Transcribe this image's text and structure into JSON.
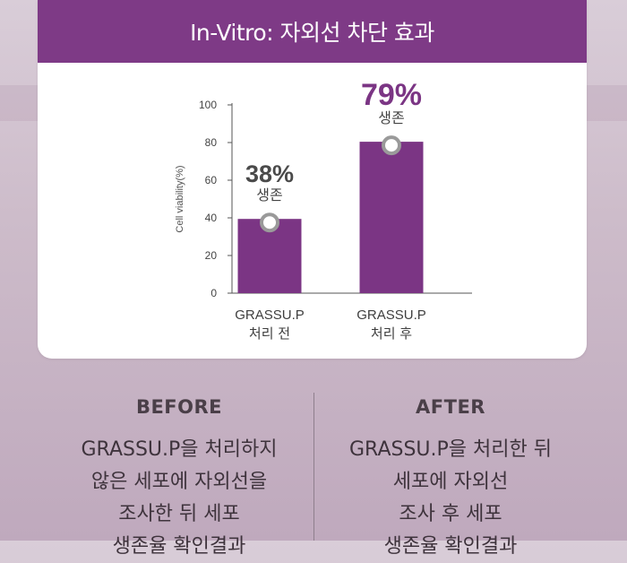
{
  "header": {
    "title": "In-Vitro: 자외선 차단 효과"
  },
  "chart_data": {
    "type": "bar",
    "categories": [
      {
        "line1": "GRASSU.P",
        "line2": "처리 전"
      },
      {
        "line1": "GRASSU.P",
        "line2": "처리 후"
      }
    ],
    "values": [
      38,
      79
    ],
    "value_labels": [
      "38%",
      "79%"
    ],
    "sub_labels": [
      "생존",
      "생존"
    ],
    "ylabel": "Cell viability(%)",
    "ylim": [
      0,
      100
    ],
    "yticks": [
      "0",
      "20",
      "40",
      "60",
      "80",
      "100"
    ],
    "bar_color": "#7b3584",
    "highlight_color": "#7b3584",
    "grid": false
  },
  "before": {
    "title": "BEFORE",
    "lines": [
      "GRASSU.P을 처리하지",
      "않은 세포에 자외선을",
      "조사한 뒤 세포",
      "생존율 확인결과"
    ]
  },
  "after": {
    "title": "AFTER",
    "lines": [
      "GRASSU.P을 처리한 뒤",
      "세포에 자외선",
      "조사 후 세포",
      "생존율 확인결과"
    ]
  }
}
